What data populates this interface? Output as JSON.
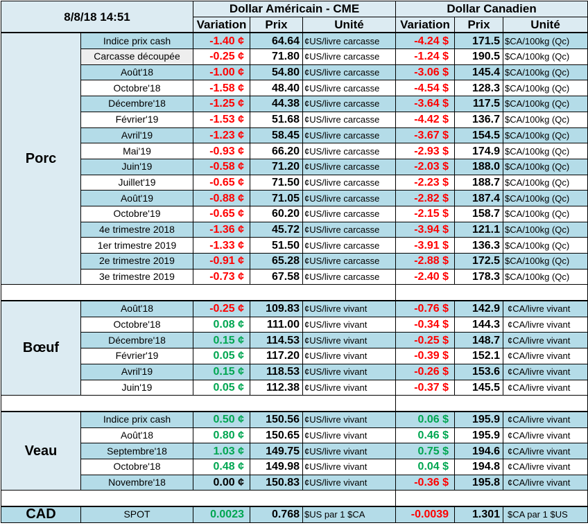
{
  "header": {
    "datetime": "8/8/18 14:51",
    "usd_title": "Dollar Américain - CME",
    "cad_title": "Dollar Canadien",
    "col_variation": "Variation",
    "col_prix": "Prix",
    "col_unite": "Unité"
  },
  "groups": {
    "porc": "Porc",
    "boeuf": "Bœuf",
    "veau": "Veau",
    "cad": "CAD"
  },
  "porc_rows": [
    {
      "label": "Indice prix cash",
      "usd_var": "-1.40 ¢",
      "usd_prix": "64.64",
      "usd_unit": "¢US/livre carcasse",
      "cad_var": "-4.24 $",
      "cad_prix": "171.5",
      "cad_unit": "$CA/100kg (Qc)"
    },
    {
      "label": "Carcasse découpée",
      "usd_var": "-0.25 ¢",
      "usd_prix": "71.80",
      "usd_unit": "¢US/livre carcasse",
      "cad_var": "-1.24 $",
      "cad_prix": "190.5",
      "cad_unit": "$CA/100kg (Qc)"
    },
    {
      "label": "Août'18",
      "usd_var": "-1.00 ¢",
      "usd_prix": "54.80",
      "usd_unit": "¢US/livre carcasse",
      "cad_var": "-3.06 $",
      "cad_prix": "145.4",
      "cad_unit": "$CA/100kg (Qc)"
    },
    {
      "label": "Octobre'18",
      "usd_var": "-1.58 ¢",
      "usd_prix": "48.40",
      "usd_unit": "¢US/livre carcasse",
      "cad_var": "-4.54 $",
      "cad_prix": "128.3",
      "cad_unit": "$CA/100kg (Qc)"
    },
    {
      "label": "Décembre'18",
      "usd_var": "-1.25 ¢",
      "usd_prix": "44.38",
      "usd_unit": "¢US/livre carcasse",
      "cad_var": "-3.64 $",
      "cad_prix": "117.5",
      "cad_unit": "$CA/100kg (Qc)"
    },
    {
      "label": "Février'19",
      "usd_var": "-1.53 ¢",
      "usd_prix": "51.68",
      "usd_unit": "¢US/livre carcasse",
      "cad_var": "-4.42 $",
      "cad_prix": "136.7",
      "cad_unit": "$CA/100kg (Qc)"
    },
    {
      "label": "Avril'19",
      "usd_var": "-1.23 ¢",
      "usd_prix": "58.45",
      "usd_unit": "¢US/livre carcasse",
      "cad_var": "-3.67 $",
      "cad_prix": "154.5",
      "cad_unit": "$CA/100kg (Qc)"
    },
    {
      "label": "Mai'19",
      "usd_var": "-0.93 ¢",
      "usd_prix": "66.20",
      "usd_unit": "¢US/livre carcasse",
      "cad_var": "-2.93 $",
      "cad_prix": "174.9",
      "cad_unit": "$CA/100kg (Qc)"
    },
    {
      "label": "Juin'19",
      "usd_var": "-0.58 ¢",
      "usd_prix": "71.20",
      "usd_unit": "¢US/livre carcasse",
      "cad_var": "-2.03 $",
      "cad_prix": "188.0",
      "cad_unit": "$CA/100kg (Qc)"
    },
    {
      "label": "Juillet'19",
      "usd_var": "-0.65 ¢",
      "usd_prix": "71.50",
      "usd_unit": "¢US/livre carcasse",
      "cad_var": "-2.23 $",
      "cad_prix": "188.7",
      "cad_unit": "$CA/100kg (Qc)"
    },
    {
      "label": "Août'19",
      "usd_var": "-0.88 ¢",
      "usd_prix": "71.05",
      "usd_unit": "¢US/livre carcasse",
      "cad_var": "-2.82 $",
      "cad_prix": "187.4",
      "cad_unit": "$CA/100kg (Qc)"
    },
    {
      "label": "Octobre'19",
      "usd_var": "-0.65 ¢",
      "usd_prix": "60.20",
      "usd_unit": "¢US/livre carcasse",
      "cad_var": "-2.15 $",
      "cad_prix": "158.7",
      "cad_unit": "$CA/100kg (Qc)"
    },
    {
      "label": "4e trimestre 2018",
      "usd_var": "-1.36 ¢",
      "usd_prix": "45.72",
      "usd_unit": "¢US/livre carcasse",
      "cad_var": "-3.94 $",
      "cad_prix": "121.1",
      "cad_unit": "$CA/100kg (Qc)"
    },
    {
      "label": "1er trimestre 2019",
      "usd_var": "-1.33 ¢",
      "usd_prix": "51.50",
      "usd_unit": "¢US/livre carcasse",
      "cad_var": "-3.91 $",
      "cad_prix": "136.3",
      "cad_unit": "$CA/100kg (Qc)"
    },
    {
      "label": "2e trimestre 2019",
      "usd_var": "-0.91 ¢",
      "usd_prix": "65.28",
      "usd_unit": "¢US/livre carcasse",
      "cad_var": "-2.88 $",
      "cad_prix": "172.5",
      "cad_unit": "$CA/100kg (Qc)"
    },
    {
      "label": "3e trimestre 2019",
      "usd_var": "-0.73 ¢",
      "usd_prix": "67.58",
      "usd_unit": "¢US/livre carcasse",
      "cad_var": "-2.40 $",
      "cad_prix": "178.3",
      "cad_unit": "$CA/100kg (Qc)"
    }
  ],
  "boeuf_rows": [
    {
      "label": "Août'18",
      "usd_var": "-0.25 ¢",
      "usd_prix": "109.83",
      "usd_unit": "¢US/livre vivant",
      "cad_var": "-0.76 $",
      "cad_prix": "142.9",
      "cad_unit": "¢CA/livre vivant"
    },
    {
      "label": "Octobre'18",
      "usd_var": "0.08 ¢",
      "usd_prix": "111.00",
      "usd_unit": "¢US/livre vivant",
      "cad_var": "-0.34 $",
      "cad_prix": "144.3",
      "cad_unit": "¢CA/livre vivant"
    },
    {
      "label": "Décembre'18",
      "usd_var": "0.15 ¢",
      "usd_prix": "114.53",
      "usd_unit": "¢US/livre vivant",
      "cad_var": "-0.25 $",
      "cad_prix": "148.7",
      "cad_unit": "¢CA/livre vivant"
    },
    {
      "label": "Février'19",
      "usd_var": "0.05 ¢",
      "usd_prix": "117.20",
      "usd_unit": "¢US/livre vivant",
      "cad_var": "-0.39 $",
      "cad_prix": "152.1",
      "cad_unit": "¢CA/livre vivant"
    },
    {
      "label": "Avril'19",
      "usd_var": "0.15 ¢",
      "usd_prix": "118.53",
      "usd_unit": "¢US/livre vivant",
      "cad_var": "-0.26 $",
      "cad_prix": "153.6",
      "cad_unit": "¢CA/livre vivant"
    },
    {
      "label": "Juin'19",
      "usd_var": "0.05 ¢",
      "usd_prix": "112.38",
      "usd_unit": "¢US/livre vivant",
      "cad_var": "-0.37 $",
      "cad_prix": "145.5",
      "cad_unit": "¢CA/livre vivant"
    }
  ],
  "veau_rows": [
    {
      "label": "Indice prix cash",
      "usd_var": "0.50 ¢",
      "usd_prix": "150.56",
      "usd_unit": "¢US/livre vivant",
      "cad_var": "0.06 $",
      "cad_prix": "195.9",
      "cad_unit": "¢CA/livre vivant"
    },
    {
      "label": "Août'18",
      "usd_var": "0.80 ¢",
      "usd_prix": "150.65",
      "usd_unit": "¢US/livre vivant",
      "cad_var": "0.46 $",
      "cad_prix": "195.9",
      "cad_unit": "¢CA/livre vivant"
    },
    {
      "label": "Septembre'18",
      "usd_var": "1.03 ¢",
      "usd_prix": "149.75",
      "usd_unit": "¢US/livre vivant",
      "cad_var": "0.75 $",
      "cad_prix": "194.6",
      "cad_unit": "¢CA/livre vivant"
    },
    {
      "label": "Octobre'18",
      "usd_var": "0.48 ¢",
      "usd_prix": "149.98",
      "usd_unit": "¢US/livre vivant",
      "cad_var": "0.04 $",
      "cad_prix": "194.8",
      "cad_unit": "¢CA/livre vivant"
    },
    {
      "label": "Novembre'18",
      "usd_var": "0.00 ¢",
      "usd_prix": "150.83",
      "usd_unit": "¢US/livre vivant",
      "cad_var": "-0.36 $",
      "cad_prix": "195.8",
      "cad_unit": "¢CA/livre vivant"
    }
  ],
  "spot": {
    "label": "SPOT",
    "usd_var": "0.0023",
    "usd_prix": "0.768",
    "usd_unit": "$US par 1 $CA",
    "cad_var": "-0.0039",
    "cad_prix": "1.301",
    "cad_unit": "$CA par 1 $US"
  },
  "colors": {
    "negative": "#ff0000",
    "positive": "#00a651",
    "zero": "#000000",
    "band": "#b4dce8",
    "header": "#dcebf2"
  }
}
